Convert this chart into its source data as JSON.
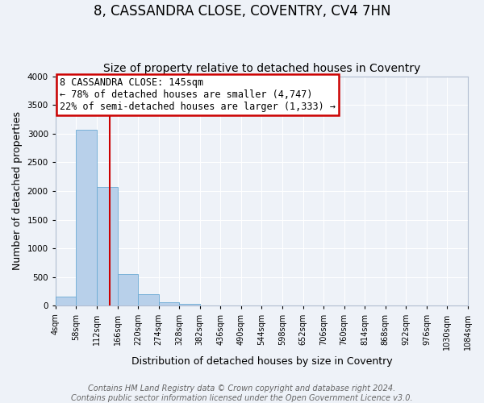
{
  "title": "8, CASSANDRA CLOSE, COVENTRY, CV4 7HN",
  "subtitle": "Size of property relative to detached houses in Coventry",
  "xlabel": "Distribution of detached houses by size in Coventry",
  "ylabel": "Number of detached properties",
  "bin_edges": [
    4,
    58,
    112,
    166,
    220,
    274,
    328,
    382,
    436,
    490,
    544,
    598,
    652,
    706,
    760,
    814,
    868,
    922,
    976,
    1030,
    1084
  ],
  "bin_heights": [
    155,
    3060,
    2070,
    560,
    205,
    65,
    30,
    0,
    0,
    0,
    0,
    0,
    0,
    0,
    0,
    0,
    0,
    0,
    0,
    0
  ],
  "bar_color": "#b8d0ea",
  "bar_edge_color": "#6aaad4",
  "vline_x": 145,
  "vline_color": "#cc0000",
  "annotation_text": "8 CASSANDRA CLOSE: 145sqm\n← 78% of detached houses are smaller (4,747)\n22% of semi-detached houses are larger (1,333) →",
  "annotation_box_color": "#ffffff",
  "annotation_box_edge": "#cc0000",
  "ylim": [
    0,
    4000
  ],
  "xlim": [
    4,
    1084
  ],
  "tick_labels": [
    "4sqm",
    "58sqm",
    "112sqm",
    "166sqm",
    "220sqm",
    "274sqm",
    "328sqm",
    "382sqm",
    "436sqm",
    "490sqm",
    "544sqm",
    "598sqm",
    "652sqm",
    "706sqm",
    "760sqm",
    "814sqm",
    "868sqm",
    "922sqm",
    "976sqm",
    "1030sqm",
    "1084sqm"
  ],
  "tick_positions": [
    4,
    58,
    112,
    166,
    220,
    274,
    328,
    382,
    436,
    490,
    544,
    598,
    652,
    706,
    760,
    814,
    868,
    922,
    976,
    1030,
    1084
  ],
  "footer_line1": "Contains HM Land Registry data © Crown copyright and database right 2024.",
  "footer_line2": "Contains public sector information licensed under the Open Government Licence v3.0.",
  "background_color": "#eef2f8",
  "grid_color": "#ffffff",
  "title_fontsize": 12,
  "subtitle_fontsize": 10,
  "axis_label_fontsize": 9,
  "tick_fontsize": 7,
  "footer_fontsize": 7,
  "annotation_fontsize": 8.5,
  "yticks": [
    0,
    500,
    1000,
    1500,
    2000,
    2500,
    3000,
    3500,
    4000
  ]
}
